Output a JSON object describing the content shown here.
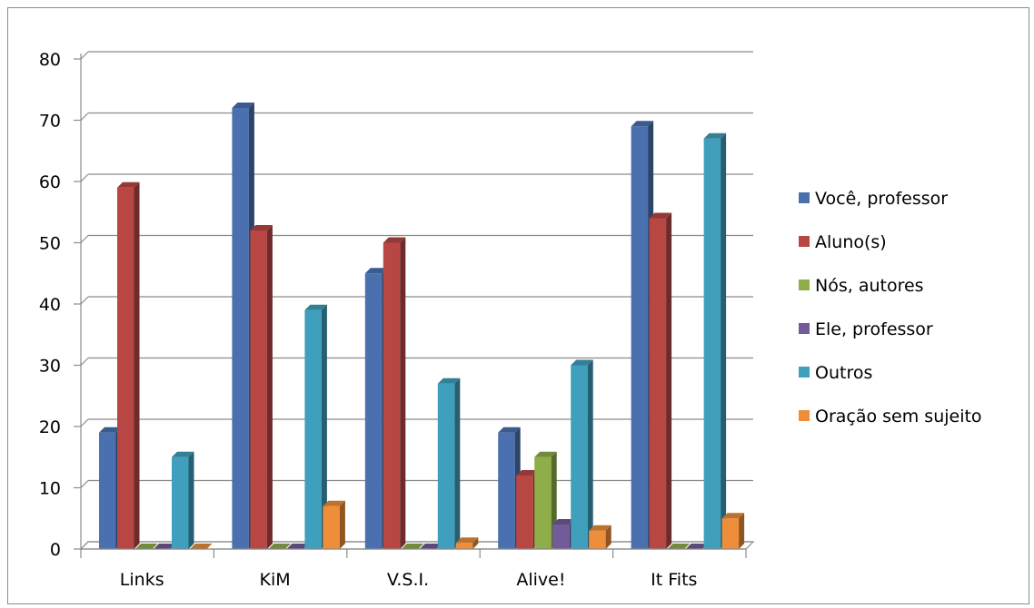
{
  "chart_data": {
    "type": "bar",
    "categories": [
      "Links",
      "KiM",
      "V.S.I.",
      "Alive!",
      "It Fits"
    ],
    "series": [
      {
        "name": "Você, professor",
        "values": [
          19,
          72,
          45,
          19,
          69
        ],
        "color": "#4a70b0"
      },
      {
        "name": "Aluno(s)",
        "values": [
          59,
          52,
          50,
          12,
          54
        ],
        "color": "#b84744"
      },
      {
        "name": "Nós, autores",
        "values": [
          0,
          0,
          0,
          15,
          0
        ],
        "color": "#8fae4a"
      },
      {
        "name": "Ele, professor",
        "values": [
          0,
          0,
          0,
          4,
          0
        ],
        "color": "#735b9a"
      },
      {
        "name": "Outros",
        "values": [
          15,
          39,
          27,
          30,
          67
        ],
        "color": "#3f9fbc"
      },
      {
        "name": "Oração sem sujeito",
        "values": [
          0,
          7,
          1,
          3,
          5
        ],
        "color": "#ee8d3a"
      }
    ],
    "y_ticks": [
      "0",
      "10",
      "20",
      "30",
      "40",
      "50",
      "60",
      "70",
      "80"
    ],
    "ylim": [
      0,
      80
    ],
    "grid": true,
    "legend_position": "right",
    "style": "3d-clustered-column"
  }
}
